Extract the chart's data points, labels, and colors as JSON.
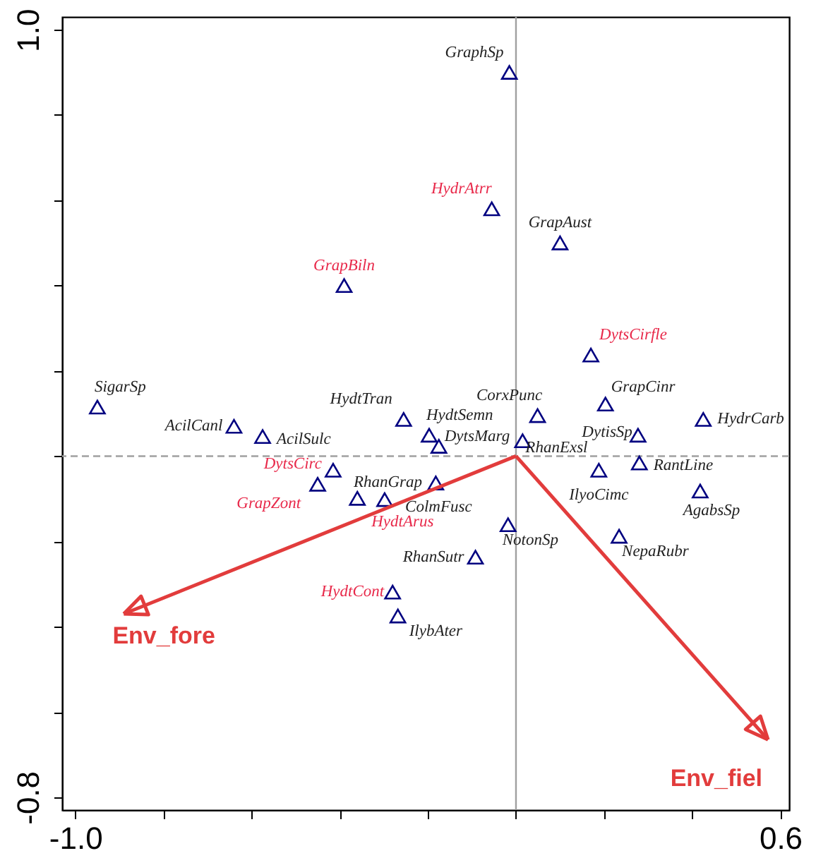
{
  "chart_data": {
    "type": "scatter",
    "xlim": [
      -1.03,
      0.62
    ],
    "ylim": [
      -0.83,
      1.03
    ],
    "xticks": [
      {
        "value": -1.0,
        "label": "-1.0"
      },
      {
        "value": -0.8,
        "label": null
      },
      {
        "value": -0.6,
        "label": null
      },
      {
        "value": -0.4,
        "label": null
      },
      {
        "value": -0.2,
        "label": null
      },
      {
        "value": 0,
        "label": null
      },
      {
        "value": 0.2,
        "label": null
      },
      {
        "value": 0.4,
        "label": null
      },
      {
        "value": 0.6,
        "label": "0.6"
      }
    ],
    "yticks": [
      {
        "value": -0.8,
        "label": "-0.8"
      },
      {
        "value": -0.6,
        "label": null
      },
      {
        "value": -0.4,
        "label": null
      },
      {
        "value": -0.2,
        "label": null
      },
      {
        "value": 0,
        "label": null
      },
      {
        "value": 0.2,
        "label": null
      },
      {
        "value": 0.4,
        "label": null
      },
      {
        "value": 0.6,
        "label": null
      },
      {
        "value": 0.8,
        "label": null
      },
      {
        "value": 1.0,
        "label": "1.0"
      }
    ],
    "marker": "triangle",
    "grid": false,
    "legend": "bottom",
    "ref_lines": [
      {
        "axis": "x",
        "value": 0,
        "color": "#a0a0a0",
        "line_style": "solid"
      },
      {
        "axis": "y",
        "value": 0,
        "color": "#a0a0a0",
        "line_style": "dashed"
      }
    ],
    "series": [
      {
        "color": "#000080",
        "x": [
          -0.015,
          0.1,
          -0.95,
          -0.64,
          -0.575,
          -0.255,
          -0.197,
          -0.175,
          0.049,
          0.015,
          0.203,
          0.277,
          0.425,
          0.28,
          0.188,
          0.418,
          0.234,
          -0.018,
          -0.092,
          -0.298,
          -0.182,
          -0.268
        ],
        "values": [
          0.9,
          0.5,
          0.115,
          0.07,
          0.046,
          0.086,
          0.049,
          0.023,
          0.095,
          0.036,
          0.122,
          0.049,
          0.086,
          -0.016,
          -0.033,
          -0.082,
          -0.188,
          -0.161,
          -0.237,
          -0.102,
          -0.063,
          -0.375
        ]
      },
      {
        "color": "#000080",
        "x": [
          -0.055,
          -0.39,
          0.17,
          -0.415,
          -0.45,
          -0.36,
          -0.28
        ],
        "values": [
          0.58,
          0.4,
          0.237,
          -0.033,
          -0.066,
          -0.099,
          -0.319
        ]
      },
      {
        "name": "Env_fore",
        "type": "line",
        "marker": "none",
        "color": "#e23c3c",
        "x": [
          0,
          -0.89
        ],
        "values": [
          0,
          -0.37
        ]
      },
      {
        "name": "Env_fiel",
        "type": "line",
        "marker": "none",
        "color": "#e23c3c",
        "x": [
          0,
          0.572
        ],
        "values": [
          0,
          -0.665
        ]
      }
    ],
    "annotations": [
      {
        "text": "GraphSp",
        "x": -0.015,
        "y": 0.9
      },
      {
        "text": "GrapAust",
        "x": 0.1,
        "y": 0.5
      },
      {
        "text": "SigarSp",
        "x": -0.95,
        "y": 0.115
      },
      {
        "text": "AcilCanl",
        "x": -0.64,
        "y": 0.07
      },
      {
        "text": "AcilSulc",
        "x": -0.575,
        "y": 0.046
      },
      {
        "text": "HydtTran",
        "x": -0.255,
        "y": 0.086
      },
      {
        "text": "HydtSemn",
        "x": -0.197,
        "y": 0.049
      },
      {
        "text": "DytsMarg",
        "x": -0.175,
        "y": 0.023
      },
      {
        "text": "CorxPunc",
        "x": 0.049,
        "y": 0.095
      },
      {
        "text": "RhanExsl",
        "x": 0.015,
        "y": 0.036
      },
      {
        "text": "GrapCinr",
        "x": 0.203,
        "y": 0.122
      },
      {
        "text": "DytisSp",
        "x": 0.277,
        "y": 0.049
      },
      {
        "text": "HydrCarb",
        "x": 0.425,
        "y": 0.086
      },
      {
        "text": "RantLine",
        "x": 0.28,
        "y": -0.016
      },
      {
        "text": "IlyoCimc",
        "x": 0.188,
        "y": -0.033
      },
      {
        "text": "AgabsSp",
        "x": 0.418,
        "y": -0.082
      },
      {
        "text": "NepaRubr",
        "x": 0.234,
        "y": -0.188
      },
      {
        "text": "NotonSp",
        "x": -0.018,
        "y": -0.161
      },
      {
        "text": "RhanSutr",
        "x": -0.092,
        "y": -0.237
      },
      {
        "text": "RhanGrap",
        "x": -0.298,
        "y": -0.102
      },
      {
        "text": "ColmFusc",
        "x": -0.182,
        "y": -0.063
      },
      {
        "text": "IlybAter",
        "x": -0.268,
        "y": -0.375
      },
      {
        "text": "HydrAtrr",
        "x": -0.055,
        "y": 0.58
      },
      {
        "text": "GrapBiln",
        "x": -0.39,
        "y": 0.4
      },
      {
        "text": "DytsCirfle",
        "x": 0.17,
        "y": 0.237
      },
      {
        "text": "DytsCirc",
        "x": -0.415,
        "y": -0.033
      },
      {
        "text": "GrapZont",
        "x": -0.45,
        "y": -0.066
      },
      {
        "text": "HydtArus",
        "x": -0.36,
        "y": -0.099
      },
      {
        "text": "HydtCont",
        "x": -0.28,
        "y": -0.319
      }
    ]
  }
}
